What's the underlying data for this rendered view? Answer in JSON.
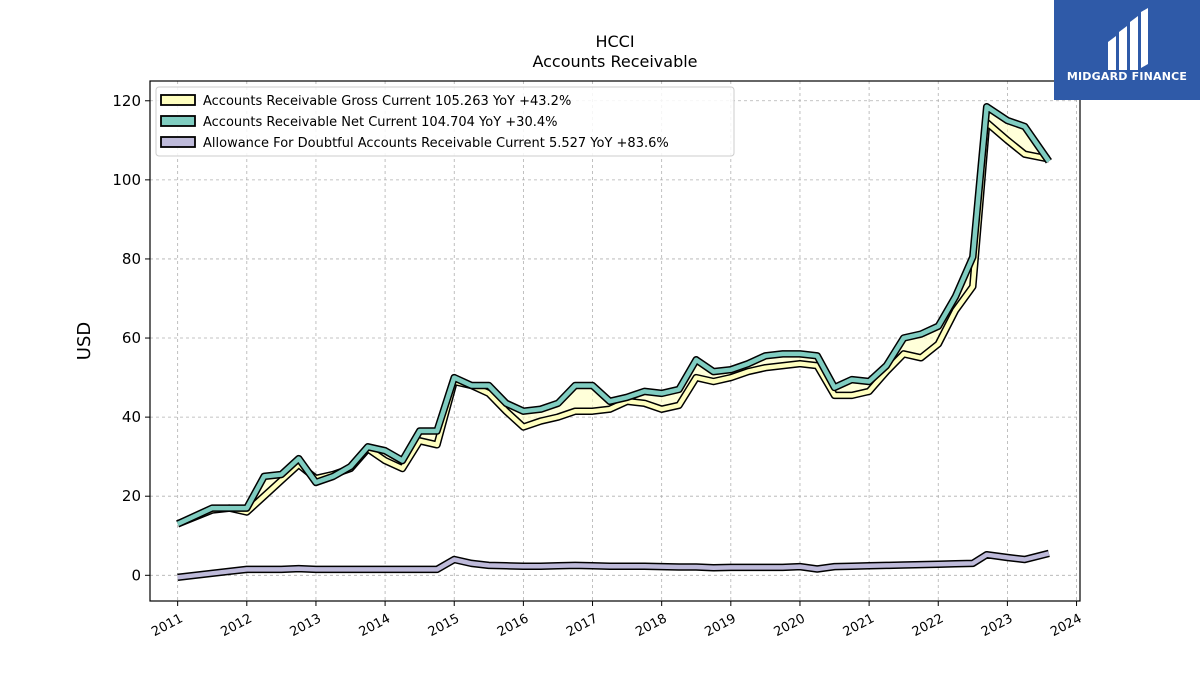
{
  "brand": {
    "name": "MIDGARD FINANCE",
    "bg_color": "#2f5aa8",
    "icon": "midgard-logo-icon"
  },
  "chart_data": {
    "type": "line",
    "title": "HCCI",
    "subtitle": "Accounts Receivable",
    "xlabel": "",
    "ylabel": "USD",
    "xlim": [
      2010.6,
      2024.05
    ],
    "ylim": [
      -6.5,
      125
    ],
    "x_ticks": [
      "2011",
      "2012",
      "2013",
      "2014",
      "2015",
      "2016",
      "2017",
      "2018",
      "2019",
      "2020",
      "2021",
      "2022",
      "2023",
      "2024"
    ],
    "y_ticks": [
      "0",
      "20",
      "40",
      "60",
      "80",
      "100",
      "120"
    ],
    "grid": true,
    "legend_position": "top-left",
    "series": [
      {
        "name": "Accounts Receivable Gross Current",
        "legend": "Accounts Receivable Gross Current  105.263 YoY +43.2%",
        "color": "#ffffbf",
        "x": [
          2011.0,
          2011.5,
          2011.75,
          2012.0,
          2012.25,
          2012.5,
          2012.75,
          2013.0,
          2013.25,
          2013.5,
          2013.75,
          2014.0,
          2014.25,
          2014.5,
          2014.75,
          2015.0,
          2015.25,
          2015.5,
          2015.75,
          2016.0,
          2016.25,
          2016.5,
          2016.75,
          2017.0,
          2017.25,
          2017.5,
          2017.75,
          2018.0,
          2018.25,
          2018.5,
          2018.75,
          2019.0,
          2019.25,
          2019.5,
          2019.75,
          2020.0,
          2020.25,
          2020.5,
          2020.75,
          2021.0,
          2021.25,
          2021.5,
          2021.75,
          2022.0,
          2022.25,
          2022.5,
          2022.7,
          2023.0,
          2023.25,
          2023.6
        ],
        "y": [
          13,
          16.5,
          17,
          16,
          20,
          24,
          28,
          24.5,
          25.5,
          27,
          32,
          29,
          27,
          34,
          33,
          49,
          48,
          46,
          41.5,
          37.5,
          39,
          40,
          41.5,
          41.5,
          42,
          44,
          43.5,
          42,
          43,
          50,
          49,
          50,
          51.5,
          52.5,
          53,
          53.5,
          53,
          45.5,
          45.5,
          46.5,
          51.5,
          56,
          55,
          58.5,
          67,
          73,
          114.5,
          110,
          106.5,
          105.263
        ]
      },
      {
        "name": "Accounts Receivable Net Current",
        "legend": "Accounts Receivable Net Current  104.704 YoY +30.4%",
        "color": "#80cdc1",
        "x": [
          2011.0,
          2011.5,
          2011.75,
          2012.0,
          2012.25,
          2012.5,
          2012.75,
          2013.0,
          2013.25,
          2013.5,
          2013.75,
          2014.0,
          2014.25,
          2014.5,
          2014.75,
          2015.0,
          2015.25,
          2015.5,
          2015.75,
          2016.0,
          2016.25,
          2016.5,
          2016.75,
          2017.0,
          2017.25,
          2017.5,
          2017.75,
          2018.0,
          2018.25,
          2018.5,
          2018.75,
          2019.0,
          2019.25,
          2019.5,
          2019.75,
          2020.0,
          2020.25,
          2020.5,
          2020.75,
          2021.0,
          2021.25,
          2021.5,
          2021.75,
          2022.0,
          2022.25,
          2022.5,
          2022.7,
          2023.0,
          2023.25,
          2023.6
        ],
        "y": [
          13,
          17,
          17,
          17,
          25,
          25.5,
          29.5,
          23.5,
          25,
          27.5,
          32.5,
          31.5,
          29,
          36.5,
          36.5,
          50,
          48,
          48,
          43.5,
          41.5,
          42,
          43.5,
          48,
          48,
          44,
          45,
          46.5,
          46,
          47,
          54.5,
          51.5,
          52,
          53.5,
          55.5,
          56,
          56,
          55.5,
          47.5,
          49.5,
          49,
          53,
          60,
          61,
          63,
          70.5,
          80.5,
          118.5,
          115,
          113.5,
          104.704
        ]
      },
      {
        "name": "Allowance For Doubtful Accounts Receivable Current",
        "legend": "Allowance For Doubtful Accounts Receivable Current  5.527 YoY +83.6%",
        "color": "#bebada",
        "x": [
          2011.0,
          2011.5,
          2011.75,
          2012.0,
          2012.25,
          2012.5,
          2012.75,
          2013.0,
          2013.25,
          2013.5,
          2013.75,
          2014.0,
          2014.25,
          2014.5,
          2014.75,
          2015.0,
          2015.25,
          2015.5,
          2015.75,
          2016.0,
          2016.25,
          2016.5,
          2016.75,
          2017.0,
          2017.25,
          2017.5,
          2017.75,
          2018.0,
          2018.25,
          2018.5,
          2018.75,
          2019.0,
          2019.25,
          2019.5,
          2019.75,
          2020.0,
          2020.25,
          2020.5,
          2020.75,
          2021.0,
          2021.25,
          2021.5,
          2021.75,
          2022.0,
          2022.25,
          2022.5,
          2022.7,
          2023.0,
          2023.25,
          2023.6
        ],
        "y": [
          -0.5,
          0.5,
          1,
          1.5,
          1.5,
          1.5,
          1.7,
          1.5,
          1.5,
          1.5,
          1.5,
          1.5,
          1.5,
          1.5,
          1.5,
          4,
          3,
          2.5,
          2.4,
          2.3,
          2.3,
          2.4,
          2.5,
          2.4,
          2.3,
          2.3,
          2.3,
          2.2,
          2.1,
          2.1,
          1.9,
          2,
          2,
          2,
          2,
          2.2,
          1.6,
          2.2,
          2.3,
          2.4,
          2.5,
          2.6,
          2.7,
          2.8,
          2.9,
          3,
          5.2,
          4.5,
          4,
          5.527
        ]
      }
    ]
  }
}
